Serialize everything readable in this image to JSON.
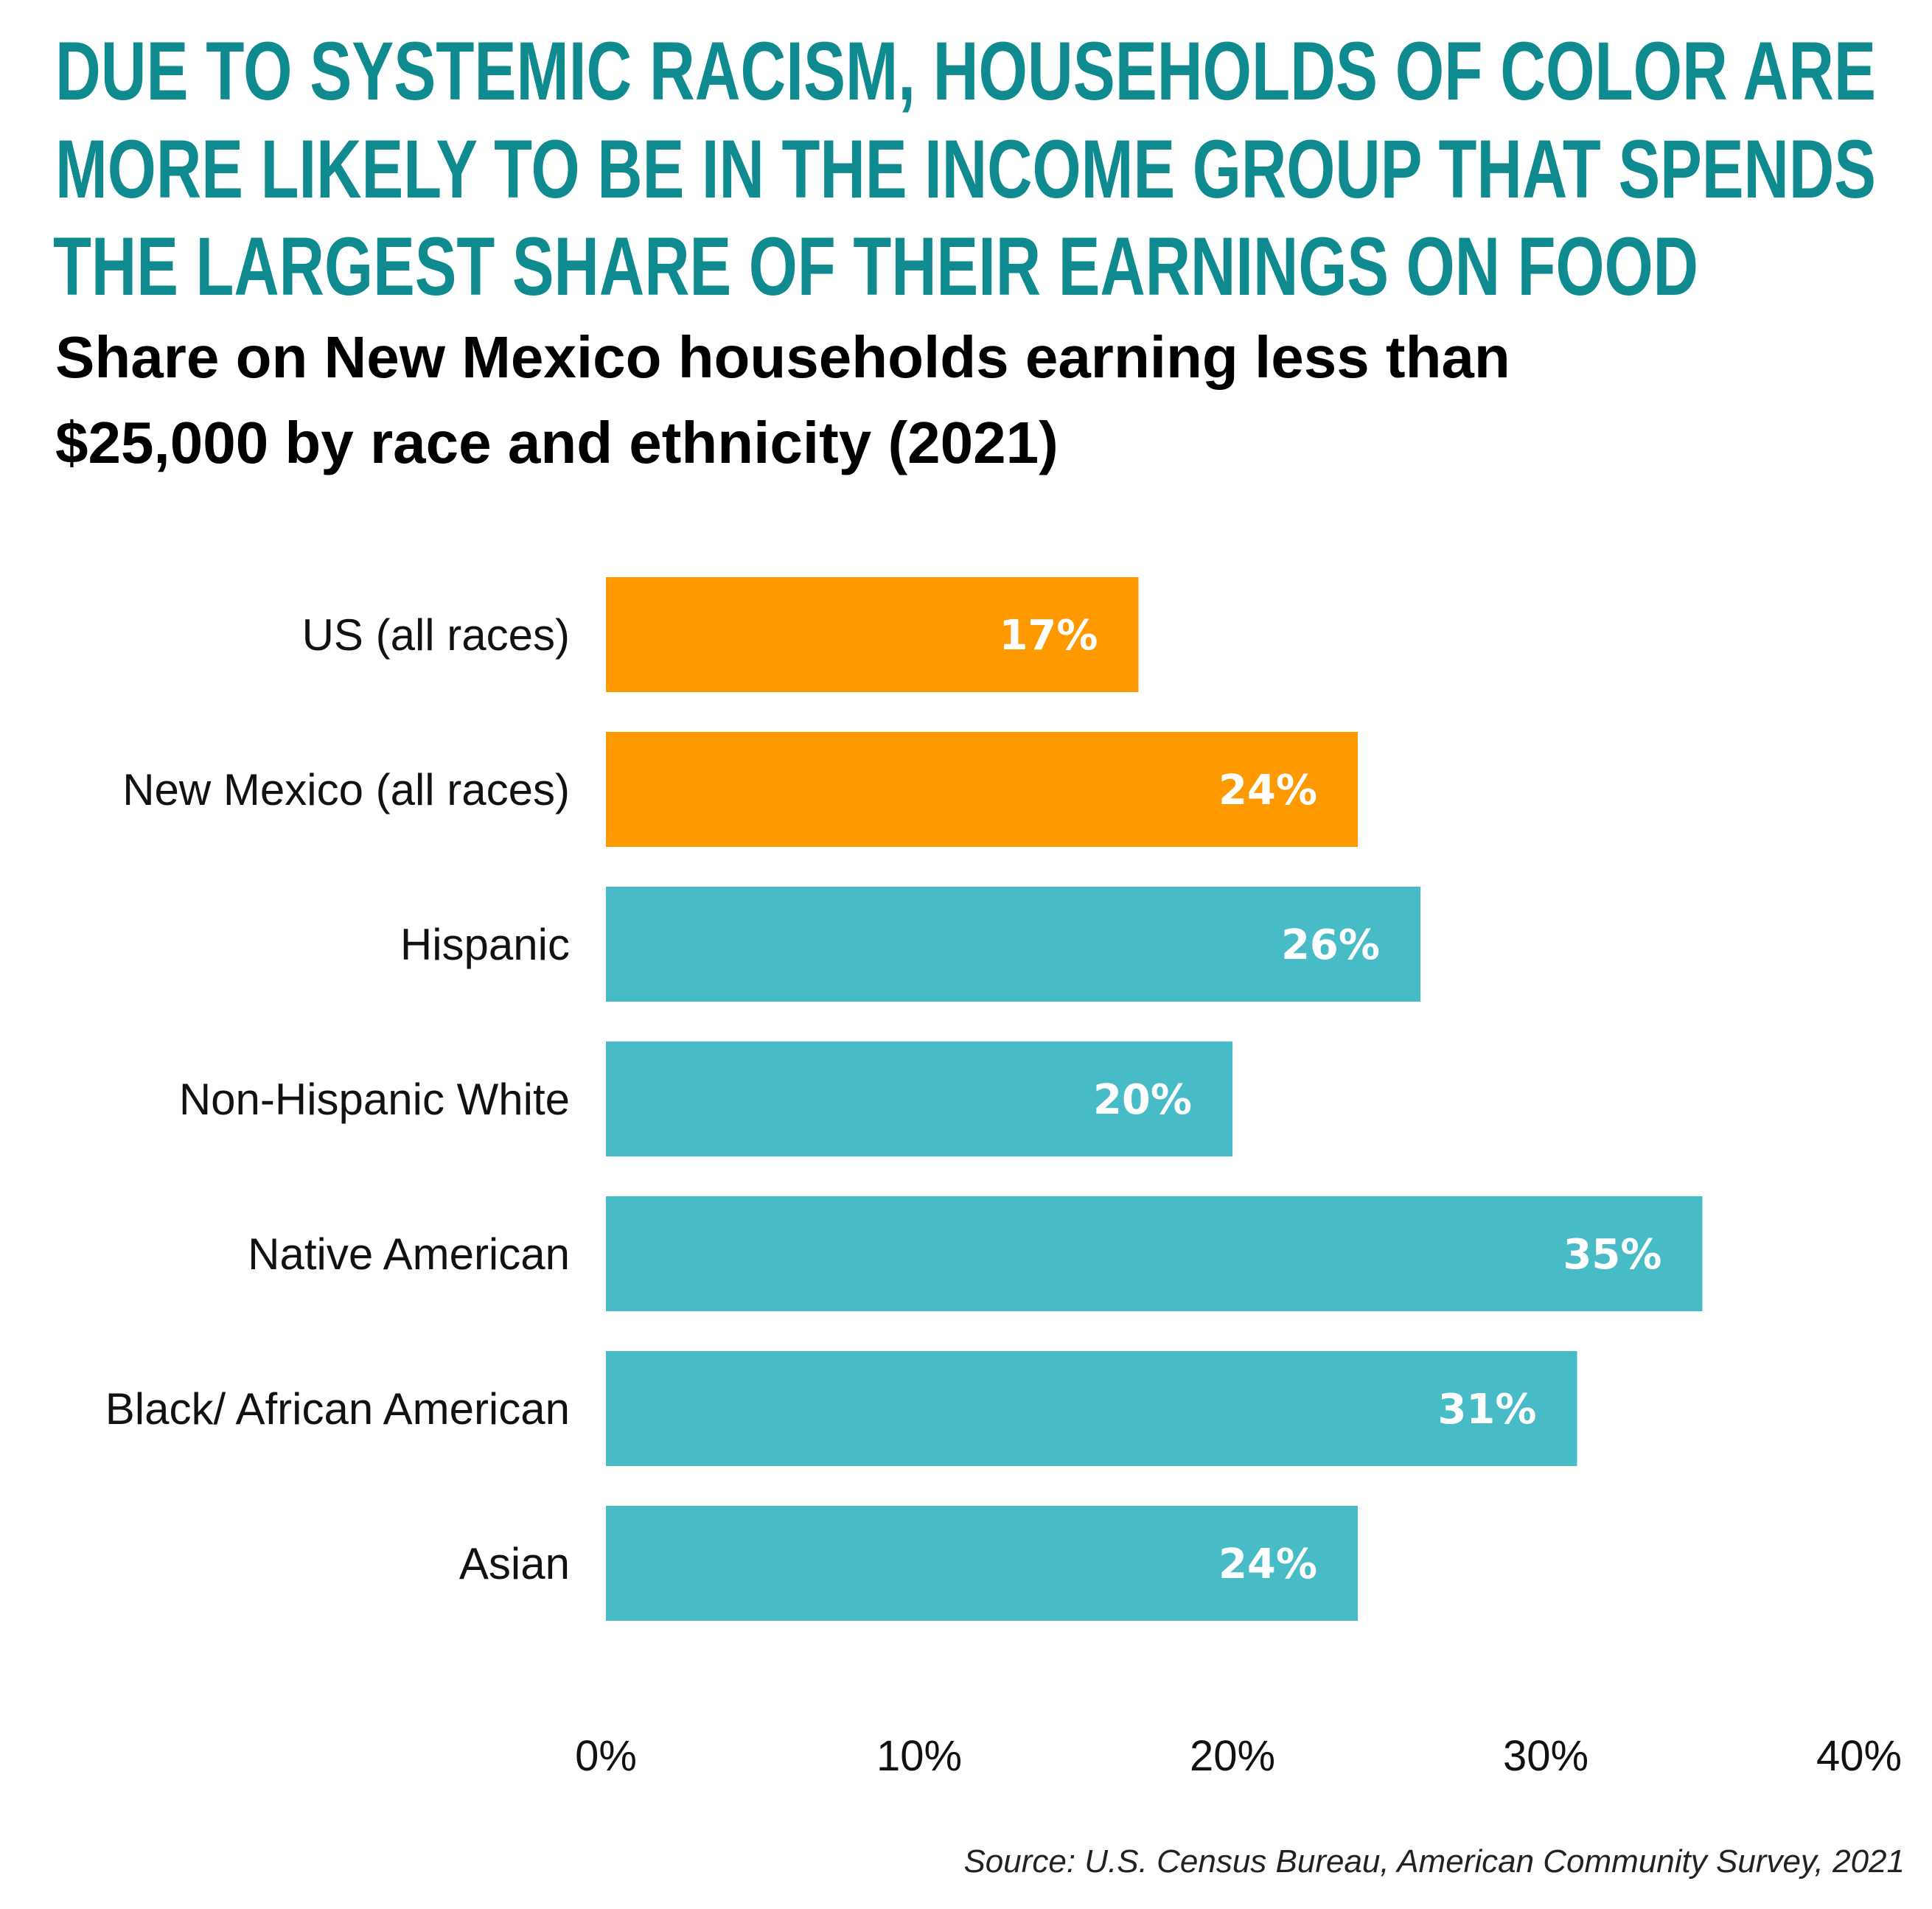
{
  "title_lines": [
    "DUE TO SYSTEMIC RACISM, HOUSEHOLDS OF COLOR ARE",
    "MORE LIKELY TO BE IN THE INCOME GROUP THAT SPENDS",
    "THE LARGEST  SHARE OF THEIR EARNINGS ON FOOD"
  ],
  "subtitle_lines": [
    "Share on New Mexico households earning less than",
    "$25,000 by race and ethnicity (2021)"
  ],
  "source": "Source: U.S. Census Bureau, American Community Survey, 2021",
  "colors": {
    "title": "#0f8b8f",
    "aggregate_bar": "#ff9900",
    "group_bar": "#47bbc6"
  },
  "chart_data": {
    "type": "bar",
    "orientation": "horizontal",
    "categories": [
      "US (all races)",
      "New Mexico (all races)",
      "Hispanic",
      "Non-Hispanic White",
      "Native American",
      "Black/ African American",
      "Asian"
    ],
    "values": [
      17,
      24,
      26,
      20,
      35,
      31,
      24
    ],
    "data_labels": [
      "17%",
      "24%",
      "26%",
      "20%",
      "35%",
      "31%",
      "24%"
    ],
    "bar_colors": [
      "#ff9900",
      "#ff9900",
      "#47bbc6",
      "#47bbc6",
      "#47bbc6",
      "#47bbc6",
      "#47bbc6"
    ],
    "xlim": [
      0,
      40
    ],
    "xticks": [
      "0%",
      "10%",
      "20%",
      "30%",
      "40%"
    ],
    "xtick_values": [
      0,
      10,
      20,
      30,
      40
    ],
    "grid": false,
    "legend": "none"
  }
}
